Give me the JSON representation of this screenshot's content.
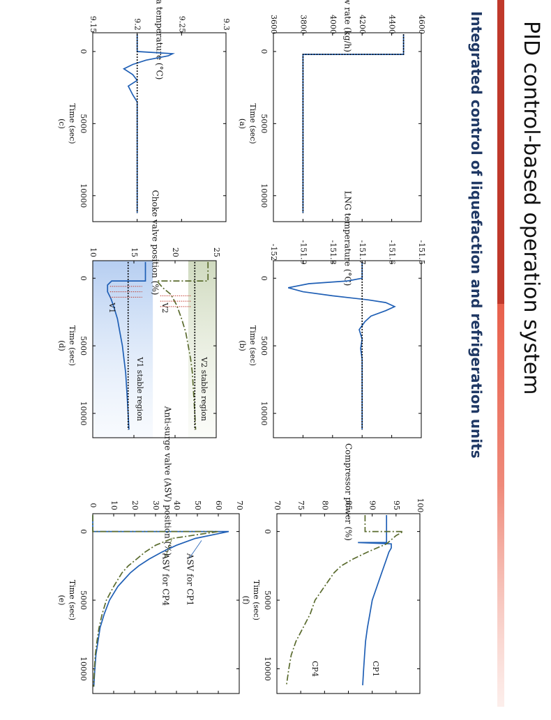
{
  "slide": {
    "title": "PID control-based operation system",
    "subtitle": "Integrated control of liquefaction and refrigeration units",
    "accent_color": "#c0392b",
    "side_bar_color": "#e8604c"
  },
  "colors": {
    "blue": "#1f5fb5",
    "green": "#5a6b2e",
    "black": "#000000"
  },
  "chart_data": [
    {
      "id": "a",
      "panel_label": "(a)",
      "type": "line",
      "ylabel": "LNG flow rate (kg/h)",
      "xlabel": "Time (sec)",
      "xlim": [
        -1300,
        11800
      ],
      "ylim": [
        3600,
        4600
      ],
      "xticks": [
        0,
        5000,
        10000
      ],
      "yticks": [
        3600,
        3800,
        4000,
        4200,
        4400,
        4600
      ],
      "ytick_labels": [
        "3600",
        "3800",
        "4000",
        "4200",
        "4400",
        "4600"
      ],
      "grid": false,
      "series": [
        {
          "color": "blue",
          "dash": "solid",
          "x": [
            -1200,
            200,
            200,
            11200
          ],
          "y": [
            4480,
            4480,
            3800,
            3800
          ]
        },
        {
          "color": "black",
          "dash": "dotted",
          "x": [
            -1200,
            200,
            200,
            11200
          ],
          "y": [
            4480,
            4480,
            3800,
            3800
          ]
        }
      ]
    },
    {
      "id": "b",
      "panel_label": "(b)",
      "type": "line",
      "ylabel": "LNG temperature (°C)",
      "xlabel": "Time (sec)",
      "xlim": [
        -1300,
        11800
      ],
      "ylim": [
        -152,
        -151.5
      ],
      "xticks": [
        0,
        5000,
        10000
      ],
      "yticks": [
        -152,
        -151.9,
        -151.8,
        -151.7,
        -151.6,
        -151.5
      ],
      "ytick_labels": [
        "-152",
        "-151.9",
        "-151.8",
        "-151.7",
        "-151.6",
        "-151.5"
      ],
      "grid": false,
      "series": [
        {
          "color": "blue",
          "dash": "solid",
          "x": [
            -1200,
            0,
            200,
            400,
            700,
            1000,
            1300,
            1600,
            1800,
            2100,
            2400,
            2800,
            3200,
            3800,
            4500,
            5200,
            6000,
            7000,
            8000,
            9000,
            10000,
            11200
          ],
          "y": [
            -151.7,
            -151.7,
            -151.75,
            -151.88,
            -151.95,
            -151.9,
            -151.8,
            -151.68,
            -151.62,
            -151.59,
            -151.62,
            -151.67,
            -151.69,
            -151.71,
            -151.7,
            -151.705,
            -151.7,
            -151.7,
            -151.7,
            -151.7,
            -151.7,
            -151.7
          ]
        },
        {
          "color": "black",
          "dash": "dotted",
          "x": [
            -1200,
            11200
          ],
          "y": [
            -151.7,
            -151.7
          ]
        }
      ]
    },
    {
      "id": "c",
      "panel_label": "(c)",
      "type": "line",
      "ylabel": "Warm end delta temperature (°C)",
      "xlabel": "Time (sec)",
      "xlim": [
        -1300,
        11800
      ],
      "ylim": [
        9.15,
        9.3
      ],
      "xticks": [
        0,
        5000,
        10000
      ],
      "yticks": [
        9.15,
        9.2,
        9.25,
        9.3
      ],
      "ytick_labels": [
        "9.15",
        "9.2",
        "9.25",
        "9.3"
      ],
      "grid": false,
      "series": [
        {
          "color": "blue",
          "dash": "solid",
          "x": [
            -1200,
            0,
            150,
            300,
            600,
            900,
            1200,
            1600,
            2000,
            2400,
            3000,
            3500,
            4500,
            6000,
            8000,
            11200
          ],
          "y": [
            9.2,
            9.2,
            9.24,
            9.235,
            9.21,
            9.195,
            9.185,
            9.195,
            9.2,
            9.19,
            9.195,
            9.2,
            9.2,
            9.2,
            9.2,
            9.2
          ]
        },
        {
          "color": "black",
          "dash": "dotted",
          "x": [
            -1200,
            11200
          ],
          "y": [
            9.2,
            9.2
          ]
        }
      ]
    },
    {
      "id": "d",
      "panel_label": "(d)",
      "type": "line",
      "ylabel": "Choke valve position (%)",
      "xlabel": "Time (sec)",
      "xlim": [
        -1300,
        11800
      ],
      "ylim": [
        10,
        25
      ],
      "xticks": [
        0,
        5000,
        10000
      ],
      "yticks": [
        10,
        15,
        20,
        25
      ],
      "ytick_labels": [
        "10",
        "15",
        "20",
        "25"
      ],
      "grid": false,
      "annotations": [
        "V1",
        "V2",
        "V1 stable region",
        "V2 stable region"
      ],
      "series": [
        {
          "color": "blue",
          "dash": "solid",
          "x": [
            -1200,
            200,
            200,
            500,
            1000,
            1500,
            2000,
            3000,
            4000,
            5000,
            6000,
            7000,
            8000,
            9000,
            10000,
            11200
          ],
          "y": [
            16.4,
            16.4,
            12.3,
            11.8,
            11.8,
            12.2,
            12.5,
            13.0,
            13.3,
            13.6,
            13.8,
            14.0,
            14.1,
            14.2,
            14.3,
            14.4
          ]
        },
        {
          "color": "green",
          "dash": "dash",
          "x": [
            -1200,
            200,
            200,
            700,
            1200,
            2000,
            3000,
            4000,
            5000,
            6000,
            7000,
            8000,
            9000,
            10000,
            11200
          ],
          "y": [
            24.0,
            24.0,
            17.8,
            18.5,
            19.5,
            20.2,
            20.8,
            21.3,
            21.6,
            21.9,
            22.1,
            22.2,
            22.3,
            22.4,
            22.5
          ]
        },
        {
          "color": "black",
          "dash": "dotted",
          "x": [
            -1200,
            11200
          ],
          "y": [
            14.3,
            14.3
          ]
        },
        {
          "color": "black",
          "dash": "dotted",
          "x": [
            -1200,
            11200
          ],
          "y": [
            22.4,
            22.4
          ]
        }
      ]
    },
    {
      "id": "e",
      "panel_label": "(e)",
      "type": "line",
      "ylabel": "Anti-surge valve (ASV) position (%)",
      "xlabel": "Time (sec)",
      "xlim": [
        -1300,
        11800
      ],
      "ylim": [
        0,
        70
      ],
      "xticks": [
        0,
        5000,
        10000
      ],
      "yticks": [
        0,
        10,
        20,
        30,
        40,
        50,
        60,
        70
      ],
      "ytick_labels": [
        "0",
        "10",
        "20",
        "30",
        "40",
        "50",
        "60",
        "70"
      ],
      "grid": false,
      "annotations": [
        "ASV for CP1",
        "ASV for CP4"
      ],
      "series": [
        {
          "color": "blue",
          "dash": "solid",
          "x": [
            -1200,
            0,
            0,
            500,
            1000,
            1500,
            2000,
            2500,
            3000,
            3500,
            4000,
            5000,
            6000,
            7000,
            8000,
            9000,
            10000,
            11300
          ],
          "y": [
            0,
            0,
            65,
            49,
            40,
            33,
            27,
            22,
            18,
            15,
            12,
            8,
            5.5,
            3.5,
            2.5,
            1.5,
            1,
            0.5
          ]
        },
        {
          "color": "green",
          "dash": "dash",
          "x": [
            -1200,
            0,
            0,
            500,
            1000,
            1500,
            2000,
            2500,
            3000,
            3500,
            4000,
            5000,
            6000,
            7000,
            8000,
            9000,
            10000,
            11300
          ],
          "y": [
            0,
            0,
            60,
            38,
            30,
            25,
            21,
            17,
            14,
            12,
            10,
            6.5,
            4.5,
            3,
            2,
            1.2,
            0.8,
            0.4
          ]
        }
      ]
    },
    {
      "id": "f",
      "panel_label": "(f)",
      "type": "line",
      "ylabel": "Compressor power (%)",
      "xlabel": "Time (sec)",
      "xlim": [
        -1300,
        11800
      ],
      "ylim": [
        70,
        100
      ],
      "xticks": [
        0,
        5000,
        10000
      ],
      "yticks": [
        70,
        75,
        80,
        85,
        90,
        95,
        100
      ],
      "ytick_labels": [
        "70",
        "75",
        "80",
        "85",
        "90",
        "95",
        "100"
      ],
      "grid": false,
      "annotations": [
        "CP1",
        "CP4"
      ],
      "series": [
        {
          "color": "blue",
          "dash": "solid",
          "x": [
            -1200,
            800,
            800,
            900,
            1200,
            1500,
            2000,
            3000,
            4000,
            5000,
            6000,
            7000,
            8000,
            9000,
            10000,
            11200
          ],
          "y": [
            93.0,
            93.0,
            87.0,
            94.0,
            94.0,
            93.5,
            93.0,
            92.0,
            91.0,
            90.0,
            89.5,
            89.0,
            88.6,
            88.4,
            88.2,
            88.0
          ]
        },
        {
          "color": "green",
          "dash": "dash",
          "x": [
            -1200,
            0,
            0,
            300,
            900,
            1500,
            2000,
            2500,
            3000,
            4000,
            5000,
            6000,
            7000,
            8000,
            9000,
            10000,
            11200
          ],
          "y": [
            88.5,
            88.5,
            96.5,
            95.0,
            93.0,
            89.0,
            86.0,
            83.5,
            82.0,
            80.0,
            78.0,
            77.0,
            75.5,
            74.0,
            73.0,
            72.5,
            72.0
          ]
        }
      ]
    }
  ]
}
